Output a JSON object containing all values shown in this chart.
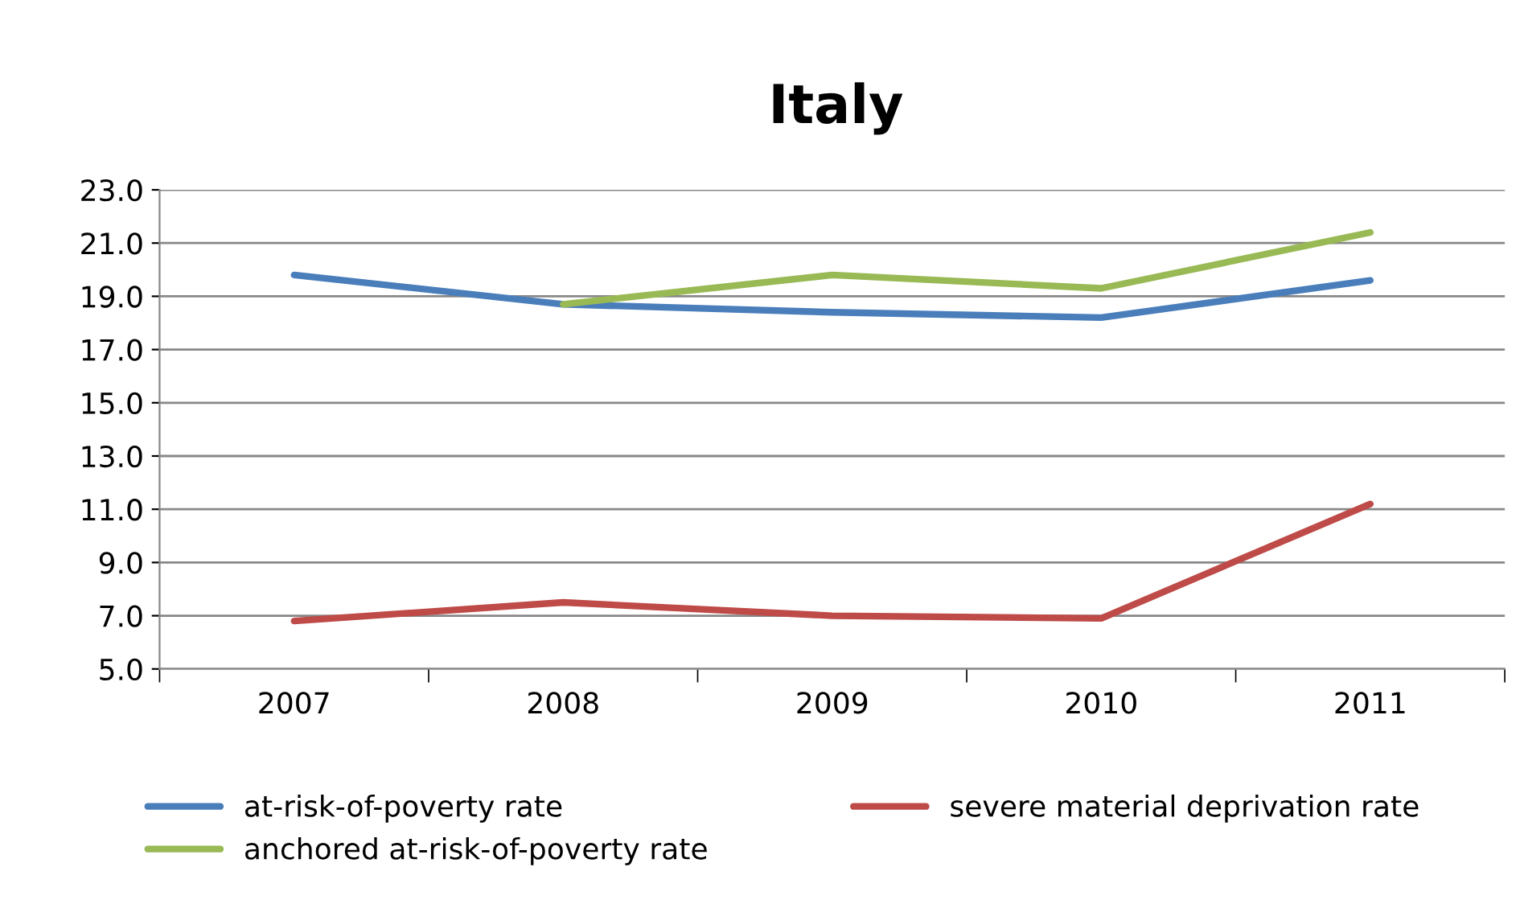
{
  "chart_data": {
    "type": "line",
    "title": "Italy",
    "categories": [
      "2007",
      "2008",
      "2009",
      "2010",
      "2011"
    ],
    "series": [
      {
        "name": "at-risk-of-poverty rate",
        "color": "#4a7ebb",
        "values": [
          19.8,
          18.7,
          18.4,
          18.2,
          19.6
        ]
      },
      {
        "name": "severe material deprivation rate",
        "color": "#be4b48",
        "values": [
          6.8,
          7.5,
          7.0,
          6.9,
          11.2
        ]
      },
      {
        "name": "anchored at-risk-of-poverty rate",
        "color": "#98b954",
        "values": [
          null,
          18.7,
          19.8,
          19.3,
          21.4
        ]
      }
    ],
    "ylim": [
      5.0,
      23.0
    ],
    "yticks": [
      {
        "value": 5,
        "label": "5.0"
      },
      {
        "value": 7,
        "label": "7.0"
      },
      {
        "value": 9,
        "label": "9.0"
      },
      {
        "value": 11,
        "label": "11.0"
      },
      {
        "value": 13,
        "label": "13.0"
      },
      {
        "value": 15,
        "label": "15.0"
      },
      {
        "value": 17,
        "label": "17.0"
      },
      {
        "value": 19,
        "label": "19.0"
      },
      {
        "value": 21,
        "label": "21.0"
      },
      {
        "value": 23,
        "label": "23.0"
      }
    ],
    "grid": "y",
    "legend": "bottom",
    "marker": "none",
    "line_style": "solid"
  }
}
